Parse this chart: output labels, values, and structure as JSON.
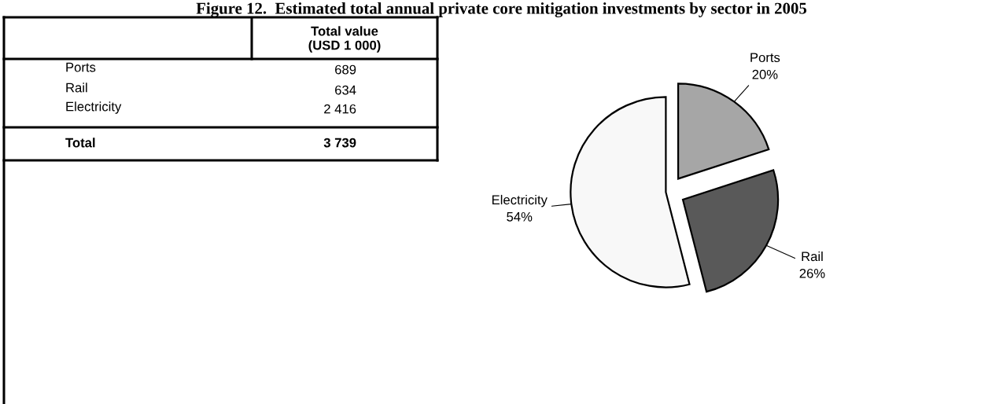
{
  "chart_data": [
    {
      "type": "other",
      "title": "Figure 12.  Estimated total annual private core mitigation investments by sector in 2005",
      "categories": [
        "Ports",
        "Rail",
        "Electricity"
      ],
      "values": [
        689,
        634,
        2416
      ],
      "value_labels": [
        "689",
        "634",
        "2 416"
      ],
      "annotations": [
        "Total value\n(USD 1 000)",
        "Total",
        "3 739"
      ]
    },
    {
      "type": "pie",
      "categories": [
        "Ports",
        "Rail",
        "Electricity"
      ],
      "values": [
        20,
        26,
        54
      ],
      "colors": [
        "#a6a6a6",
        "#595959",
        "#f8f8f8"
      ],
      "value_labels": [
        "20%",
        "26%",
        "54%"
      ]
    }
  ]
}
